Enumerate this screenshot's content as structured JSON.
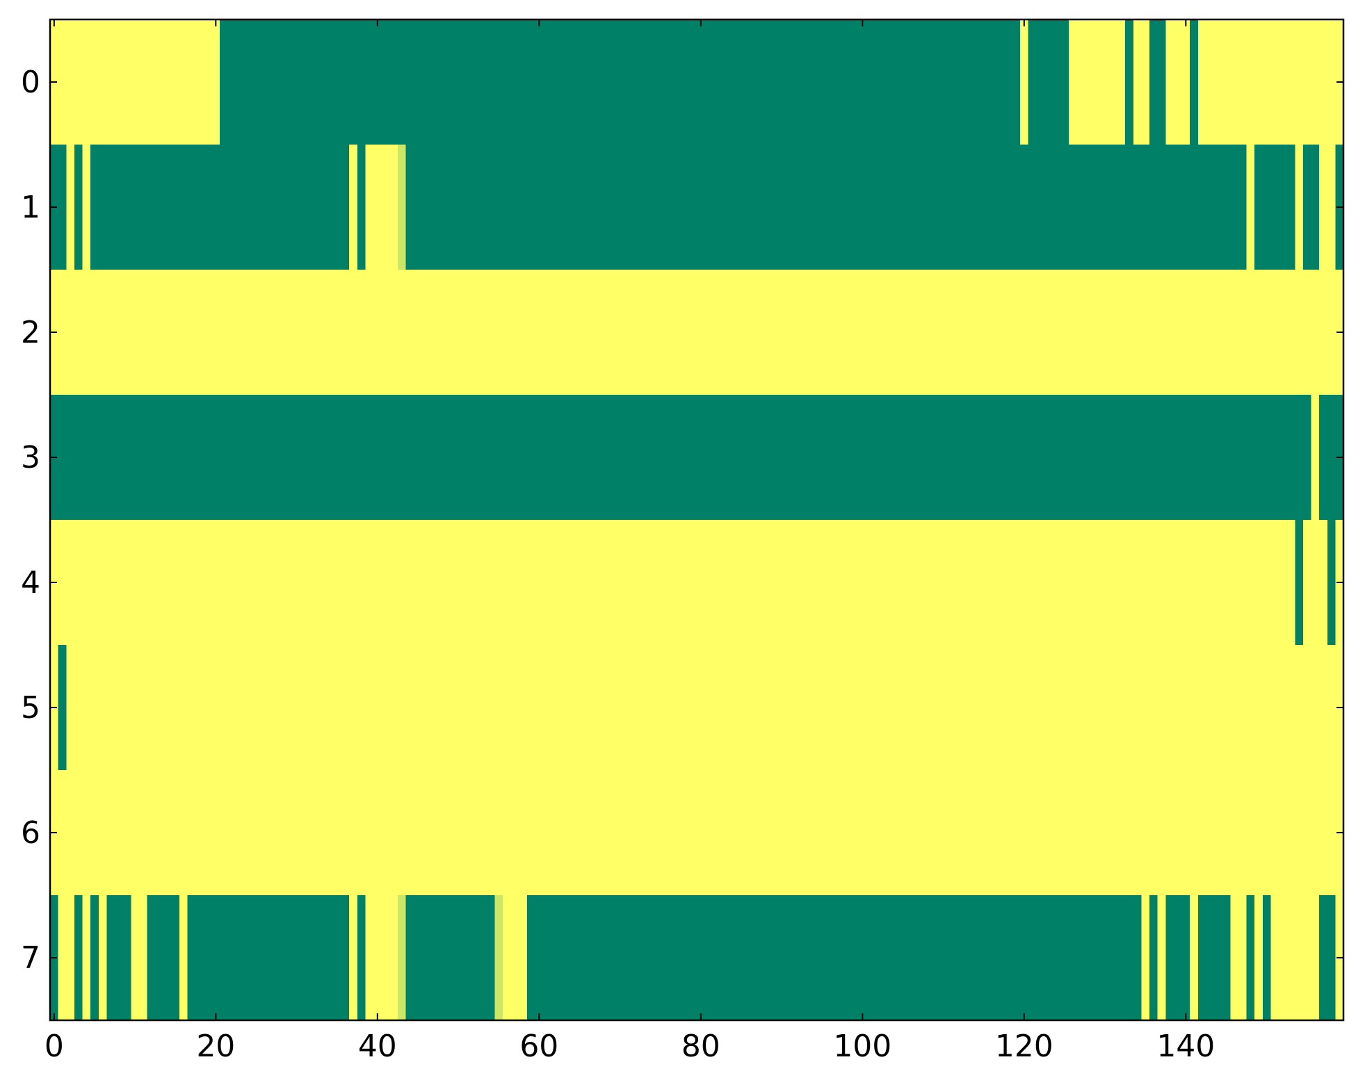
{
  "chart_data": {
    "type": "heatmap",
    "colors": [
      "#008066",
      "#ffff66"
    ],
    "zlim": [
      0,
      1
    ],
    "xlim": [
      -0.5,
      159.5
    ],
    "ylim": [
      7.5,
      -0.5
    ],
    "xticks": [
      0,
      20,
      40,
      60,
      80,
      100,
      120,
      140
    ],
    "yticks": [
      0,
      1,
      2,
      3,
      4,
      5,
      6,
      7
    ],
    "z": [
      [
        1,
        1,
        1,
        1,
        1,
        1,
        1,
        1,
        1,
        1,
        1,
        1,
        1,
        1,
        1,
        1,
        1,
        1,
        1,
        1,
        1,
        0,
        0,
        0,
        0,
        0,
        0,
        0,
        0,
        0,
        0,
        0,
        0,
        0,
        0,
        0,
        0,
        0,
        0,
        0,
        0,
        0,
        0,
        0,
        0,
        0,
        0,
        0,
        0,
        0,
        0,
        0,
        0,
        0,
        0,
        0,
        0,
        0,
        0,
        0,
        0,
        0,
        0,
        0,
        0,
        0,
        0,
        0,
        0,
        0,
        0,
        0,
        0,
        0,
        0,
        0,
        0,
        0,
        0,
        0,
        0,
        0,
        0,
        0,
        0,
        0,
        0,
        0,
        0,
        0,
        0,
        0,
        0,
        0,
        0,
        0,
        0,
        0,
        0,
        0,
        0,
        0,
        0,
        0,
        0,
        0,
        0,
        0,
        0,
        0,
        0,
        0,
        0,
        0,
        0,
        0,
        0,
        0,
        0,
        0,
        1,
        0,
        0,
        0,
        0,
        0,
        1,
        1,
        1,
        1,
        1,
        1,
        1,
        0,
        1,
        1,
        0,
        0,
        1,
        1,
        1,
        0,
        1,
        1,
        1,
        1,
        1,
        1,
        1,
        1,
        1,
        1,
        1,
        1,
        1,
        1,
        1,
        1,
        1,
        1
      ],
      [
        0,
        0,
        1,
        0,
        1,
        0,
        0,
        0,
        0,
        0,
        0,
        0,
        0,
        0,
        0,
        0,
        0,
        0,
        0,
        0,
        0,
        0,
        0,
        0,
        0,
        0,
        0,
        0,
        0,
        0,
        0,
        0,
        0,
        0,
        0,
        0,
        0,
        1,
        0,
        1,
        1,
        1,
        1,
        0.8,
        0,
        0,
        0,
        0,
        0,
        0,
        0,
        0,
        0,
        0,
        0,
        0,
        0,
        0,
        0,
        0,
        0,
        0,
        0,
        0,
        0,
        0,
        0,
        0,
        0,
        0,
        0,
        0,
        0,
        0,
        0,
        0,
        0,
        0,
        0,
        0,
        0,
        0,
        0,
        0,
        0,
        0,
        0,
        0,
        0,
        0,
        0,
        0,
        0,
        0,
        0,
        0,
        0,
        0,
        0,
        0,
        0,
        0,
        0,
        0,
        0,
        0,
        0,
        0,
        0,
        0,
        0,
        0,
        0,
        0,
        0,
        0,
        0,
        0,
        0,
        0,
        0,
        0,
        0,
        0,
        0,
        0,
        0,
        0,
        0,
        0,
        0,
        0,
        0,
        0,
        0,
        0,
        0,
        0,
        0,
        0,
        0,
        0,
        0,
        0,
        0,
        0,
        0,
        0,
        1,
        0,
        0,
        0,
        0,
        0,
        1,
        0,
        0,
        1,
        1,
        0
      ],
      [
        1,
        1,
        1,
        1,
        1,
        1,
        1,
        1,
        1,
        1,
        1,
        1,
        1,
        1,
        1,
        1,
        1,
        1,
        1,
        1,
        1,
        1,
        1,
        1,
        1,
        1,
        1,
        1,
        1,
        1,
        1,
        1,
        1,
        1,
        1,
        1,
        1,
        1,
        1,
        1,
        1,
        1,
        1,
        1,
        1,
        1,
        1,
        1,
        1,
        1,
        1,
        1,
        1,
        1,
        1,
        1,
        1,
        1,
        1,
        1,
        1,
        1,
        1,
        1,
        1,
        1,
        1,
        1,
        1,
        1,
        1,
        1,
        1,
        1,
        1,
        1,
        1,
        1,
        1,
        1,
        1,
        1,
        1,
        1,
        1,
        1,
        1,
        1,
        1,
        1,
        1,
        1,
        1,
        1,
        1,
        1,
        1,
        1,
        1,
        1,
        1,
        1,
        1,
        1,
        1,
        1,
        1,
        1,
        1,
        1,
        1,
        1,
        1,
        1,
        1,
        1,
        1,
        1,
        1,
        1,
        1,
        1,
        1,
        1,
        1,
        1,
        1,
        1,
        1,
        1,
        1,
        1,
        1,
        1,
        1,
        1,
        1,
        1,
        1,
        1,
        1,
        1,
        1,
        1,
        1,
        1,
        1,
        1,
        1,
        1,
        1,
        1,
        1,
        1,
        1,
        1,
        1,
        1,
        1,
        1
      ],
      [
        0,
        0,
        0,
        0,
        0,
        0,
        0,
        0,
        0,
        0,
        0,
        0,
        0,
        0,
        0,
        0,
        0,
        0,
        0,
        0,
        0,
        0,
        0,
        0,
        0,
        0,
        0,
        0,
        0,
        0,
        0,
        0,
        0,
        0,
        0,
        0,
        0,
        0,
        0,
        0,
        0,
        0,
        0,
        0,
        0,
        0,
        0,
        0,
        0,
        0,
        0,
        0,
        0,
        0,
        0,
        0,
        0,
        0,
        0,
        0,
        0,
        0,
        0,
        0,
        0,
        0,
        0,
        0,
        0,
        0,
        0,
        0,
        0,
        0,
        0,
        0,
        0,
        0,
        0,
        0,
        0,
        0,
        0,
        0,
        0,
        0,
        0,
        0,
        0,
        0,
        0,
        0,
        0,
        0,
        0,
        0,
        0,
        0,
        0,
        0,
        0,
        0,
        0,
        0,
        0,
        0,
        0,
        0,
        0,
        0,
        0,
        0,
        0,
        0,
        0,
        0,
        0,
        0,
        0,
        0,
        0,
        0,
        0,
        0,
        0,
        0,
        0,
        0,
        0,
        0,
        0,
        0,
        0,
        0,
        0,
        0,
        0,
        0,
        0,
        0,
        0,
        0,
        0,
        0,
        0,
        0,
        0,
        0,
        0,
        0,
        0,
        0,
        0,
        0,
        0,
        0,
        1,
        0,
        0,
        0
      ],
      [
        1,
        1,
        1,
        1,
        1,
        1,
        1,
        1,
        1,
        1,
        1,
        1,
        1,
        1,
        1,
        1,
        1,
        1,
        1,
        1,
        1,
        1,
        1,
        1,
        1,
        1,
        1,
        1,
        1,
        1,
        1,
        1,
        1,
        1,
        1,
        1,
        1,
        1,
        1,
        1,
        1,
        1,
        1,
        1,
        1,
        1,
        1,
        1,
        1,
        1,
        1,
        1,
        1,
        1,
        1,
        1,
        1,
        1,
        1,
        1,
        1,
        1,
        1,
        1,
        1,
        1,
        1,
        1,
        1,
        1,
        1,
        1,
        1,
        1,
        1,
        1,
        1,
        1,
        1,
        1,
        1,
        1,
        1,
        1,
        1,
        1,
        1,
        1,
        1,
        1,
        1,
        1,
        1,
        1,
        1,
        1,
        1,
        1,
        1,
        1,
        1,
        1,
        1,
        1,
        1,
        1,
        1,
        1,
        1,
        1,
        1,
        1,
        1,
        1,
        1,
        1,
        1,
        1,
        1,
        1,
        1,
        1,
        1,
        1,
        1,
        1,
        1,
        1,
        1,
        1,
        1,
        1,
        1,
        1,
        1,
        1,
        1,
        1,
        1,
        1,
        1,
        1,
        1,
        1,
        1,
        1,
        1,
        1,
        1,
        1,
        1,
        1,
        1,
        1,
        0,
        1,
        1,
        1,
        0,
        1
      ],
      [
        1,
        0,
        1,
        1,
        1,
        1,
        1,
        1,
        1,
        1,
        1,
        1,
        1,
        1,
        1,
        1,
        1,
        1,
        1,
        1,
        1,
        1,
        1,
        1,
        1,
        1,
        1,
        1,
        1,
        1,
        1,
        1,
        1,
        1,
        1,
        1,
        1,
        1,
        1,
        1,
        1,
        1,
        1,
        1,
        1,
        1,
        1,
        1,
        1,
        1,
        1,
        1,
        1,
        1,
        1,
        1,
        1,
        1,
        1,
        1,
        1,
        1,
        1,
        1,
        1,
        1,
        1,
        1,
        1,
        1,
        1,
        1,
        1,
        1,
        1,
        1,
        1,
        1,
        1,
        1,
        1,
        1,
        1,
        1,
        1,
        1,
        1,
        1,
        1,
        1,
        1,
        1,
        1,
        1,
        1,
        1,
        1,
        1,
        1,
        1,
        1,
        1,
        1,
        1,
        1,
        1,
        1,
        1,
        1,
        1,
        1,
        1,
        1,
        1,
        1,
        1,
        1,
        1,
        1,
        1,
        1,
        1,
        1,
        1,
        1,
        1,
        1,
        1,
        1,
        1,
        1,
        1,
        1,
        1,
        1,
        1,
        1,
        1,
        1,
        1,
        1,
        1,
        1,
        1,
        1,
        1,
        1,
        1,
        1,
        1,
        1,
        1,
        1,
        1,
        1,
        1,
        1,
        1,
        1,
        1
      ],
      [
        1,
        1,
        1,
        1,
        1,
        1,
        1,
        1,
        1,
        1,
        1,
        1,
        1,
        1,
        1,
        1,
        1,
        1,
        1,
        1,
        1,
        1,
        1,
        1,
        1,
        1,
        1,
        1,
        1,
        1,
        1,
        1,
        1,
        1,
        1,
        1,
        1,
        1,
        1,
        1,
        1,
        1,
        1,
        1,
        1,
        1,
        1,
        1,
        1,
        1,
        1,
        1,
        1,
        1,
        1,
        1,
        1,
        1,
        1,
        1,
        1,
        1,
        1,
        1,
        1,
        1,
        1,
        1,
        1,
        1,
        1,
        1,
        1,
        1,
        1,
        1,
        1,
        1,
        1,
        1,
        1,
        1,
        1,
        1,
        1,
        1,
        1,
        1,
        1,
        1,
        1,
        1,
        1,
        1,
        1,
        1,
        1,
        1,
        1,
        1,
        1,
        1,
        1,
        1,
        1,
        1,
        1,
        1,
        1,
        1,
        1,
        1,
        1,
        1,
        1,
        1,
        1,
        1,
        1,
        1,
        1,
        1,
        1,
        1,
        1,
        1,
        1,
        1,
        1,
        1,
        1,
        1,
        1,
        1,
        1,
        1,
        1,
        1,
        1,
        1,
        1,
        1,
        1,
        1,
        1,
        1,
        1,
        1,
        1,
        1,
        1,
        1,
        1,
        1,
        1,
        1,
        1,
        1,
        1,
        1
      ],
      [
        0,
        1,
        1,
        0,
        1,
        0,
        1,
        0,
        0,
        0,
        1,
        1,
        0,
        0,
        0,
        0,
        1,
        0,
        0,
        0,
        0,
        0,
        0,
        0,
        0,
        0,
        0,
        0,
        0,
        0,
        0,
        0,
        0,
        0,
        0,
        0,
        0,
        1,
        0,
        1,
        1,
        1,
        1,
        0.8,
        0,
        0,
        0,
        0,
        0,
        0,
        0,
        0,
        0,
        0,
        0,
        0.8,
        1,
        1,
        1,
        0,
        0,
        0,
        0,
        0,
        0,
        0,
        0,
        0,
        0,
        0,
        0,
        0,
        0,
        0,
        0,
        0,
        0,
        0,
        0,
        0,
        0,
        0,
        0,
        0,
        0,
        0,
        0,
        0,
        0,
        0,
        0,
        0,
        0,
        0,
        0,
        0,
        0,
        0,
        0,
        0,
        0,
        0,
        0,
        0,
        0,
        0,
        0,
        0,
        0,
        0,
        0,
        0,
        0,
        0,
        0,
        0,
        0,
        0,
        0,
        0,
        0,
        0,
        0,
        0,
        0,
        0,
        0,
        0,
        0,
        0,
        0,
        0,
        0,
        0,
        0,
        1,
        0,
        1,
        0,
        0,
        0,
        1,
        0,
        0,
        0,
        0,
        1,
        1,
        0,
        1,
        0,
        1,
        1,
        1,
        1,
        1,
        1,
        0,
        0,
        1
      ]
    ]
  }
}
